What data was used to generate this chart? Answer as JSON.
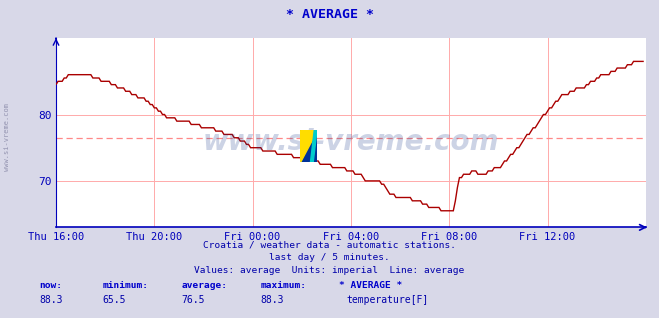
{
  "title": "* AVERAGE *",
  "subtitle1": "Croatia / weather data - automatic stations.",
  "subtitle2": "last day / 5 minutes.",
  "subtitle3": "Values: average  Units: imperial  Line: average",
  "watermark": "www.si-vreme.com",
  "side_label": "www.si-vreme.com",
  "xlabel_ticks": [
    "Thu 16:00",
    "Thu 20:00",
    "Fri 00:00",
    "Fri 04:00",
    "Fri 08:00",
    "Fri 12:00"
  ],
  "yticks": [
    70,
    80
  ],
  "ylim": [
    63.0,
    91.5
  ],
  "xlim": [
    0,
    288
  ],
  "average_line": 76.5,
  "bg_color": "#d8d8e8",
  "plot_bg_color": "#ffffff",
  "grid_color": "#ffaaaa",
  "avg_line_color": "#ff8888",
  "line_color": "#aa0000",
  "axis_color": "#0000bb",
  "title_color": "#0000cc",
  "text_color": "#0000aa",
  "watermark_color": "#1a3a8a",
  "now_val": "88.3",
  "min_val": "65.5",
  "avg_val": "76.5",
  "max_val": "88.3",
  "series_name": "* AVERAGE *",
  "legend_label": "temperature[F]",
  "legend_color": "#cc0000",
  "tick_positions": [
    0,
    48,
    96,
    144,
    192,
    240
  ]
}
